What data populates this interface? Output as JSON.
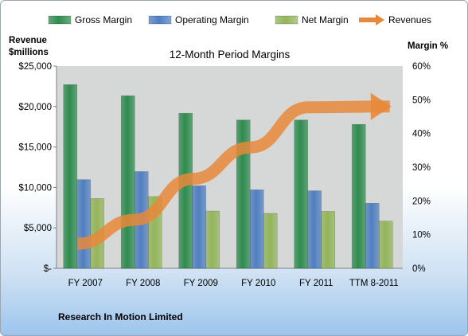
{
  "chart_data": {
    "type": "bar",
    "title": "12-Month Period Margins",
    "left_axis_label_line1": "Revenue",
    "left_axis_label_line2": "$millions",
    "right_axis_label": "Margin %",
    "categories": [
      "FY 2007",
      "FY 2008",
      "FY 2009",
      "FY 2010",
      "FY 2011",
      "TTM 8-2011"
    ],
    "left_ticks": [
      "$-",
      "$5,000",
      "$10,000",
      "$15,000",
      "$20,000",
      "$25,000"
    ],
    "right_ticks": [
      "0%",
      "10%",
      "20%",
      "30%",
      "40%",
      "50%",
      "60%"
    ],
    "left_ylim": [
      0,
      25000
    ],
    "right_ylim": [
      0,
      60
    ],
    "grid": false,
    "legend_position": "top",
    "series": [
      {
        "name": "Gross Margin",
        "kind": "bar",
        "axis": "right",
        "color": "#2e8b4e",
        "values": [
          54.5,
          51.2,
          46.0,
          44.0,
          44.0,
          42.7
        ]
      },
      {
        "name": "Operating Margin",
        "kind": "bar",
        "axis": "right",
        "color": "#4f7fc0",
        "values": [
          26.3,
          28.7,
          24.5,
          23.3,
          23.0,
          19.3
        ]
      },
      {
        "name": "Net Margin",
        "kind": "bar",
        "axis": "right",
        "color": "#93b55a",
        "values": [
          20.7,
          21.3,
          17.0,
          16.3,
          16.9,
          14.0
        ]
      },
      {
        "name": "Revenues",
        "kind": "arrow-line",
        "axis": "left",
        "color": "#e8883a",
        "values": [
          3037,
          6009,
          11065,
          14953,
          19907,
          20000
        ]
      }
    ],
    "footer": "Research In Motion Limited"
  }
}
